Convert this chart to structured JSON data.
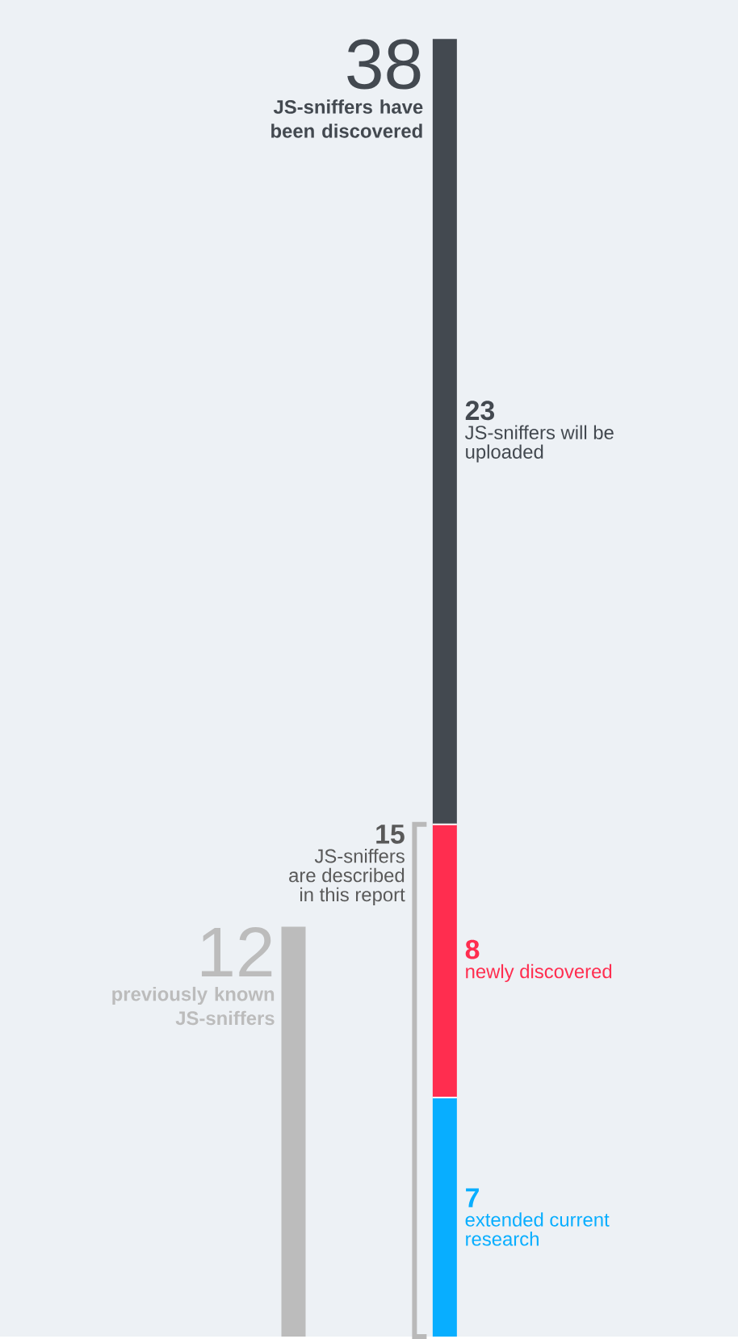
{
  "chart_data": {
    "type": "bar",
    "stacked": true,
    "categories": [
      null,
      null
    ],
    "series": [
      {
        "name": "previously known JS-sniffers",
        "color": "#bcbcbc",
        "values": [
          12,
          null
        ],
        "value_labels": [
          "12",
          null
        ]
      },
      {
        "name": "extended current research",
        "color": "#08aeff",
        "values": [
          null,
          7
        ],
        "value_labels": [
          null,
          "7"
        ]
      },
      {
        "name": "newly discovered",
        "color": "#ff2d4f",
        "values": [
          null,
          8
        ],
        "value_labels": [
          null,
          "8"
        ]
      },
      {
        "name": "JS-sniffers will be uploaded",
        "color": "#434950",
        "values": [
          null,
          23
        ],
        "value_labels": [
          null,
          "23"
        ]
      }
    ],
    "totals": [
      null,
      "38"
    ],
    "annotations": [
      "JS-sniffers have been discovered",
      "15",
      "JS-sniffers are described in this report"
    ]
  }
}
